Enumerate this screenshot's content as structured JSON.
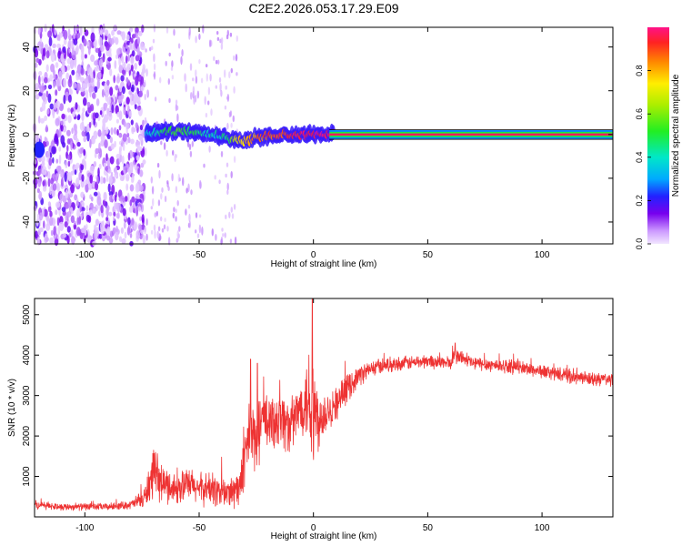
{
  "title": "C2E2.2026.053.17.29.E09",
  "chart_data": [
    {
      "type": "heatmap",
      "xlabel": "Height of straight line (km)",
      "ylabel": "Frequency (Hz)",
      "xlim": [
        -122,
        131
      ],
      "ylim": [
        -50,
        49
      ],
      "xticks": [
        -100,
        -50,
        0,
        50,
        100
      ],
      "xtick_labels": [
        "-100",
        "-50",
        "0",
        "50",
        "100"
      ],
      "yticks": [
        40,
        20,
        0,
        -20,
        -40
      ],
      "ytick_labels": [
        "40",
        "20",
        "0",
        "-20",
        "-40"
      ],
      "signal_trace": {
        "x": [
          -73,
          -68,
          -63,
          -58,
          -53,
          -48,
          -43,
          -38,
          -33,
          -28,
          -23,
          -18,
          -13,
          -8,
          -3,
          2,
          7,
          131
        ],
        "frequency": [
          0,
          0.8,
          1.2,
          1.8,
          1.5,
          1.0,
          0,
          -1.5,
          -3,
          -2.5,
          -1,
          0,
          0,
          0,
          0,
          0,
          0,
          0
        ],
        "amplitude": [
          0.35,
          0.45,
          0.5,
          0.55,
          0.5,
          0.45,
          0.4,
          0.45,
          0.75,
          0.8,
          0.85,
          0.9,
          0.92,
          0.95,
          0.97,
          0.98,
          0.98,
          1.0
        ]
      },
      "colorbar": {
        "label": "Normalized spectral amplitude",
        "range": [
          0,
          1
        ],
        "ticks": [
          0.0,
          0.2,
          0.4,
          0.6,
          0.8
        ],
        "tick_labels": [
          "0.0",
          "0.2",
          "0.4",
          "0.6",
          "0.8"
        ]
      }
    },
    {
      "type": "line",
      "xlabel": "Height of straight line (km)",
      "ylabel": "SNR (10 * v/v)",
      "xlim": [
        -122,
        131
      ],
      "ylim": [
        0,
        5400
      ],
      "xticks": [
        -100,
        -50,
        0,
        50,
        100
      ],
      "xtick_labels": [
        "-100",
        "-50",
        "0",
        "50",
        "100"
      ],
      "yticks": [
        1000,
        2000,
        3000,
        4000,
        5000
      ],
      "ytick_labels": [
        "1000",
        "2000",
        "3000",
        "4000",
        "5000"
      ],
      "color": "#ee3333",
      "x": [
        -122,
        -110,
        -100,
        -90,
        -80,
        -74,
        -72,
        -70,
        -65,
        -60,
        -55,
        -50,
        -45,
        -40,
        -35,
        -32,
        -30,
        -28,
        -25,
        -22,
        -20,
        -15,
        -10,
        -5,
        -2,
        0,
        2,
        5,
        10,
        15,
        20,
        25,
        30,
        40,
        50,
        60,
        62,
        70,
        80,
        90,
        100,
        110,
        120,
        131
      ],
      "y": [
        300,
        250,
        250,
        250,
        300,
        450,
        800,
        1000,
        800,
        700,
        800,
        700,
        700,
        600,
        600,
        800,
        1200,
        2200,
        1800,
        2600,
        2200,
        2500,
        2200,
        2800,
        3000,
        2500,
        2400,
        2600,
        2800,
        3200,
        3500,
        3650,
        3750,
        3800,
        3850,
        3800,
        4000,
        3800,
        3750,
        3700,
        3600,
        3500,
        3400,
        3400
      ],
      "noise_amp": [
        120,
        100,
        100,
        100,
        120,
        300,
        600,
        700,
        500,
        450,
        500,
        450,
        500,
        500,
        500,
        600,
        900,
        1100,
        900,
        1000,
        900,
        900,
        800,
        800,
        1500,
        2500,
        900,
        700,
        500,
        400,
        300,
        250,
        220,
        200,
        200,
        200,
        250,
        200,
        200,
        200,
        200,
        200,
        200,
        200
      ],
      "spikes": [
        {
          "x": -0.5,
          "y": 5400
        },
        {
          "x": -27.5,
          "y": 3900
        },
        {
          "x": -24.5,
          "y": 3800
        },
        {
          "x": 62,
          "y": 4300
        }
      ]
    }
  ]
}
